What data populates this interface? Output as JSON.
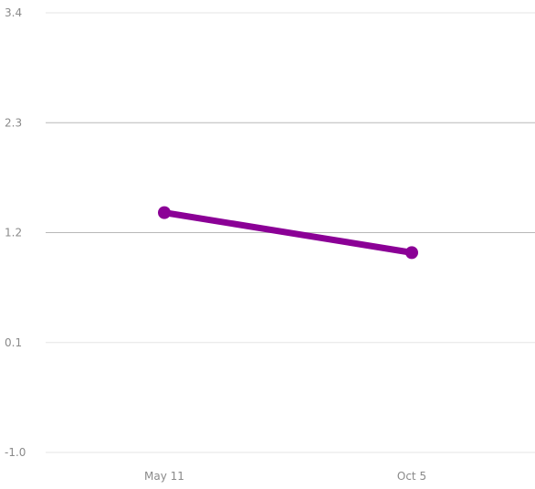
{
  "chart_data": {
    "type": "line",
    "title": "",
    "xlabel": "",
    "ylabel": "",
    "categories": [
      "May 11",
      "Oct 5"
    ],
    "series": [
      {
        "values": [
          1.4,
          1.0
        ],
        "color": "#8b0096"
      }
    ],
    "y_ticks": [
      "3.4",
      "2.3",
      "1.2",
      "0.1",
      "-1.0"
    ],
    "y_tick_values": [
      3.4,
      2.3,
      1.2,
      0.1,
      -1.0
    ],
    "ylim": [
      -1.0,
      3.4
    ],
    "grid": true,
    "legend": "none"
  }
}
